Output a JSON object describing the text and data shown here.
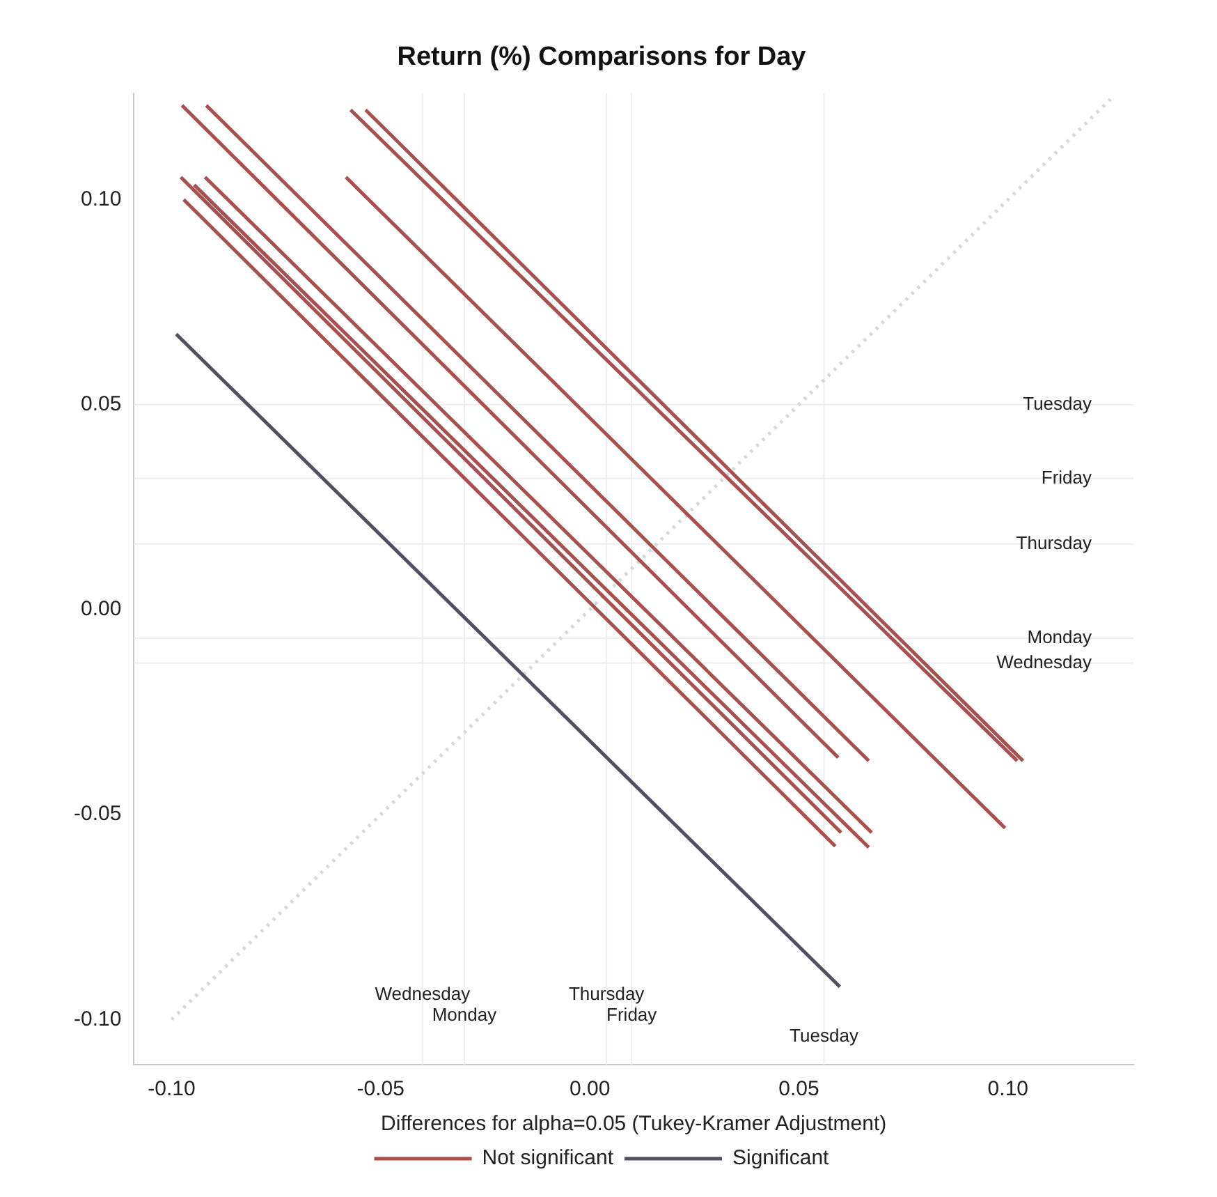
{
  "chart_data": {
    "type": "line",
    "title": "Return (%) Comparisons for Day",
    "xlabel": "Differences for alpha=0.05 (Tukey-Kramer Adjustment)",
    "xlim": [
      -0.109,
      0.13
    ],
    "ylim": [
      -0.111,
      0.126
    ],
    "xticks": [
      {
        "value": -0.1,
        "label": "-0.10"
      },
      {
        "value": -0.05,
        "label": "-0.05"
      },
      {
        "value": 0,
        "label": "0.00"
      },
      {
        "value": 0.05,
        "label": "0.05"
      },
      {
        "value": 0.1,
        "label": "0.10"
      }
    ],
    "yticks": [
      {
        "value": -0.1,
        "label": "-0.10"
      },
      {
        "value": -0.05,
        "label": "-0.05"
      },
      {
        "value": 0,
        "label": "0.00"
      },
      {
        "value": 0.05,
        "label": "0.05"
      },
      {
        "value": 0.1,
        "label": "0.10"
      }
    ],
    "grid": false,
    "legend": "bottom",
    "marker": "none",
    "line_style": "solid",
    "series": [
      {
        "name": "Not significant",
        "color": "#a85050",
        "x": [
          -0.0975,
          0.0594,
          null,
          -0.0917,
          0.0667,
          null,
          -0.0572,
          0.1022,
          null,
          -0.0536,
          0.1036,
          null,
          -0.0583,
          0.0993,
          null,
          -0.0978,
          0.0601,
          null,
          -0.092,
          0.0674,
          null,
          -0.0971,
          0.0587,
          null,
          -0.0946,
          0.0667
        ],
        "values": [
          0.123,
          -0.0361,
          null,
          0.123,
          -0.0369,
          null,
          0.1219,
          -0.0369,
          null,
          0.1219,
          -0.0369,
          null,
          0.1055,
          -0.0533,
          null,
          0.1055,
          -0.0544,
          null,
          0.1055,
          -0.0544,
          null,
          0.1,
          -0.0577,
          null,
          0.1036,
          -0.058
        ]
      },
      {
        "name": "Significant",
        "color": "#505060",
        "x": [
          -0.0989,
          0.0598
        ],
        "values": [
          0.0672,
          -0.092
        ]
      },
      {
        "color": "#d8d8d8",
        "line_style": "dotted",
        "x": [
          -0.1,
          0.125
        ],
        "values": [
          -0.1,
          0.125
        ]
      }
    ],
    "ref_lines": [
      {
        "axis": "y",
        "value": 0.05,
        "label": "Tuesday",
        "color": "#eeeeee"
      },
      {
        "axis": "y",
        "value": 0.032,
        "label": "Friday",
        "color": "#eeeeee"
      },
      {
        "axis": "y",
        "value": 0.016,
        "label": "Thursday",
        "color": "#eeeeee"
      },
      {
        "axis": "y",
        "value": -0.007,
        "label": "Monday",
        "color": "#eeeeee"
      },
      {
        "axis": "y",
        "value": -0.013,
        "label": "Wednesday",
        "color": "#eeeeee"
      },
      {
        "axis": "x",
        "value": -0.04,
        "label": "Wednesday",
        "color": "#eeeeee"
      },
      {
        "axis": "x",
        "value": -0.03,
        "label": "Monday",
        "color": "#eeeeee"
      },
      {
        "axis": "x",
        "value": 0.004,
        "label": "Thursday",
        "color": "#eeeeee"
      },
      {
        "axis": "x",
        "value": 0.01,
        "label": "Friday",
        "color": "#eeeeee"
      },
      {
        "axis": "x",
        "value": 0.056,
        "label": "Tuesday",
        "color": "#eeeeee"
      }
    ]
  }
}
